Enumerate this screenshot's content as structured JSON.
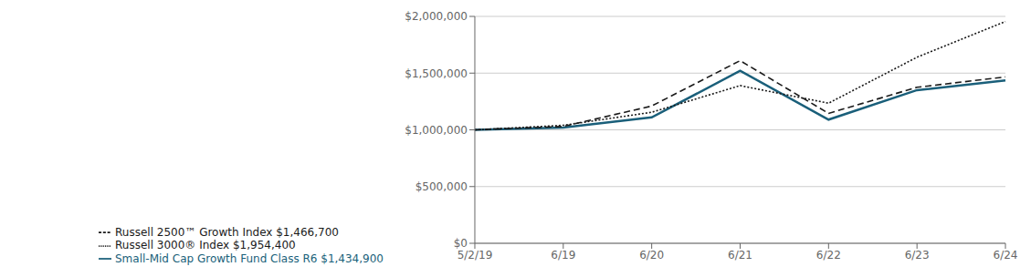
{
  "chart_data": {
    "type": "line",
    "categories": [
      "5/2/19",
      "6/19",
      "6/20",
      "6/21",
      "6/22",
      "6/23",
      "6/24"
    ],
    "series": [
      {
        "name": "Small-Mid Cap Growth Fund Class R6 $1,434,900",
        "color": "#1a5f7a",
        "line_style": "solid",
        "values": [
          1000000,
          1020000,
          1110000,
          1520000,
          1090000,
          1350000,
          1434900
        ]
      },
      {
        "name": "Russell 3000® Index $1,954,400",
        "color": "#1a1a1a",
        "line_style": "dotted",
        "values": [
          1000000,
          1040000,
          1155000,
          1390000,
          1235000,
          1640000,
          1954400
        ]
      },
      {
        "name": "Russell 2500™ Growth Index $1,466,700",
        "color": "#1a1a1a",
        "line_style": "dashed",
        "values": [
          1000000,
          1030000,
          1210000,
          1610000,
          1145000,
          1375000,
          1466700
        ]
      }
    ],
    "ylim": [
      0,
      2000000
    ],
    "yticks": [
      {
        "value": 0,
        "label": "$0"
      },
      {
        "value": 500000,
        "label": "$500,000"
      },
      {
        "value": 1000000,
        "label": "$1,000,000"
      },
      {
        "value": 1500000,
        "label": "$1,500,000"
      },
      {
        "value": 2000000,
        "label": "$2,000,000"
      }
    ],
    "grid": true,
    "legend": "bottom"
  }
}
